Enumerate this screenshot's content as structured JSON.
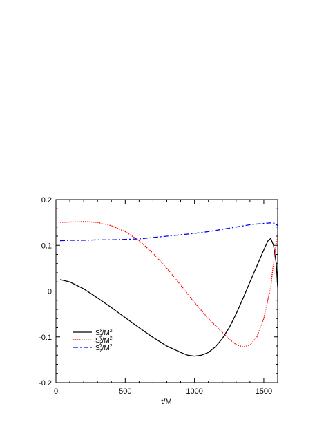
{
  "chart_data": {
    "type": "line",
    "title": "",
    "xlabel": "t/M",
    "ylabel": "",
    "xlim": [
      0,
      1600
    ],
    "ylim": [
      -0.2,
      0.2
    ],
    "xticks": [
      0,
      500,
      1000,
      1500
    ],
    "yticks": [
      -0.2,
      -0.1,
      0,
      0.1,
      0.2
    ],
    "xtick_labels": [
      "0",
      "500",
      "1000",
      "1500"
    ],
    "ytick_labels": [
      "-0.2",
      "-0.1",
      "0",
      "0.1",
      "0.2"
    ],
    "grid": false,
    "legend_position": "bottom-left",
    "series": [
      {
        "name": "S^x_z/M^2",
        "legend": {
          "base": "S",
          "sup": "x",
          "sub": "z",
          "tail": "/M",
          "tail_sup": "2"
        },
        "color": "#000000",
        "dash": "solid",
        "x": [
          30,
          100,
          200,
          300,
          400,
          500,
          600,
          700,
          800,
          900,
          950,
          1000,
          1050,
          1100,
          1150,
          1200,
          1250,
          1300,
          1350,
          1400,
          1450,
          1500,
          1530,
          1550,
          1570,
          1590,
          1600
        ],
        "y": [
          0.025,
          0.02,
          0.005,
          -0.015,
          -0.036,
          -0.058,
          -0.08,
          -0.101,
          -0.12,
          -0.134,
          -0.14,
          -0.142,
          -0.14,
          -0.134,
          -0.122,
          -0.104,
          -0.08,
          -0.05,
          -0.016,
          0.02,
          0.055,
          0.09,
          0.11,
          0.115,
          0.1,
          0.06,
          0.008
        ]
      },
      {
        "name": "S^y_z/M^2",
        "legend": {
          "base": "S",
          "sup": "y",
          "sub": "z",
          "tail": "/M",
          "tail_sup": "2"
        },
        "color": "#ff0000",
        "dash": "dotted",
        "x": [
          30,
          100,
          200,
          300,
          400,
          500,
          600,
          700,
          800,
          900,
          1000,
          1100,
          1200,
          1250,
          1300,
          1350,
          1400,
          1450,
          1500,
          1550,
          1575,
          1600
        ],
        "y": [
          0.15,
          0.151,
          0.152,
          0.15,
          0.143,
          0.13,
          0.11,
          0.083,
          0.05,
          0.013,
          -0.025,
          -0.06,
          -0.09,
          -0.105,
          -0.117,
          -0.122,
          -0.118,
          -0.1,
          -0.06,
          0.01,
          0.075,
          0.12
        ]
      },
      {
        "name": "S^z_z/M^2",
        "legend": {
          "base": "S",
          "sup": "z",
          "sub": "z",
          "tail": "/M",
          "tail_sup": "2"
        },
        "color": "#0000ff",
        "dash": "dashdot",
        "x": [
          30,
          100,
          200,
          300,
          400,
          500,
          600,
          700,
          800,
          900,
          1000,
          1100,
          1200,
          1300,
          1400,
          1500,
          1550,
          1580,
          1600
        ],
        "y": [
          0.11,
          0.111,
          0.111,
          0.112,
          0.112,
          0.113,
          0.114,
          0.117,
          0.12,
          0.123,
          0.126,
          0.13,
          0.135,
          0.14,
          0.145,
          0.148,
          0.149,
          0.148,
          0.143
        ]
      }
    ]
  }
}
